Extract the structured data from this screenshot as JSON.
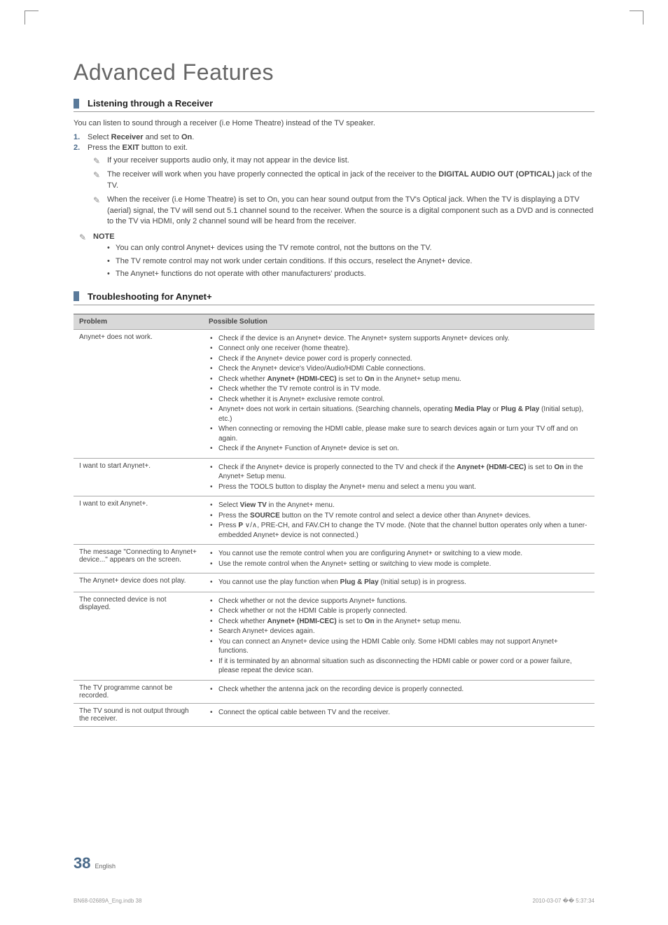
{
  "title": "Advanced Features",
  "section1": {
    "heading": "Listening through a Receiver",
    "intro": "You can listen to sound through a receiver (i.e Home Theatre) instead of the TV speaker.",
    "steps": [
      {
        "num": "1.",
        "text_pre": "Select ",
        "b1": "Receiver",
        "text_mid": " and set to ",
        "b2": "On",
        "text_post": "."
      },
      {
        "num": "2.",
        "text_pre": "Press the ",
        "b1": "EXIT",
        "text_mid": " button to exit.",
        "b2": "",
        "text_post": ""
      }
    ],
    "notes": [
      "If your receiver supports audio only, it may not appear in the device list.",
      "The receiver will work when you have properly connected the optical in jack of the receiver to the DIGITAL AUDIO OUT (OPTICAL) jack of the TV.",
      "When the receiver (i.e Home Theatre) is set to On, you can hear sound output from the TV's Optical jack. When the TV is displaying a DTV (aerial) signal, the TV will send out 5.1 channel sound to the receiver. When the source is a digital component such as a DVD and is connected to the TV via HDMI, only 2 channel sound will be heard from the receiver."
    ],
    "note_label": "NOTE",
    "note_bullets": [
      "You can only control Anynet+ devices using the TV remote control, not the buttons on the TV.",
      "The TV remote control may not work under certain conditions. If this occurs, reselect the Anynet+ device.",
      "The Anynet+ functions do not operate with other manufacturers' products."
    ]
  },
  "section2": {
    "heading": "Troubleshooting for Anynet+",
    "col1": "Problem",
    "col2": "Possible Solution",
    "rows": [
      {
        "problem": "Anynet+ does not work.",
        "solutions": [
          "Check if the device is an Anynet+ device. The Anynet+ system supports Anynet+ devices only.",
          "Connect only one receiver (home theatre).",
          "Check if the Anynet+ device power cord is properly connected.",
          "Check the Anynet+ device's Video/Audio/HDMI Cable connections.",
          "Check whether Anynet+ (HDMI-CEC) is set to On in the Anynet+ setup menu.",
          "Check whether the TV remote control is in TV mode.",
          "Check whether it is Anynet+ exclusive remote control.",
          "Anynet+ does not work in certain situations. (Searching channels, operating Media Play or Plug & Play (Initial setup), etc.)",
          "When connecting or removing the HDMI cable, please make sure to search devices again or turn your TV off and on again.",
          "Check if the Anynet+ Function of Anynet+ device is set on."
        ]
      },
      {
        "problem": "I want to start Anynet+.",
        "solutions": [
          "Check if the Anynet+ device is properly connected to the TV and check if the Anynet+ (HDMI-CEC) is set to On in the Anynet+ Setup menu.",
          "Press the TOOLS button to display the Anynet+ menu and select a menu you want."
        ]
      },
      {
        "problem": "I want to exit Anynet+.",
        "solutions": [
          "Select View TV in the Anynet+ menu.",
          "Press the SOURCE button on the TV remote control and select a device other than Anynet+ devices.",
          "Press P ∨/∧, PRE-CH, and FAV.CH to change the TV mode. (Note that the channel button operates only when a tuner-embedded Anynet+ device is not connected.)"
        ]
      },
      {
        "problem": "The message \"Connecting to Anynet+ device...\" appears on the screen.",
        "solutions": [
          "You cannot use the remote control when you are configuring Anynet+ or switching to a view mode.",
          "Use the remote control when the Anynet+ setting or switching to view mode is complete."
        ]
      },
      {
        "problem": "The Anynet+ device does not play.",
        "solutions": [
          "You cannot use the play function when Plug & Play (Initial setup) is in progress."
        ]
      },
      {
        "problem": "The connected device is not displayed.",
        "solutions": [
          "Check whether or not the device supports Anynet+ functions.",
          "Check whether or not the HDMI Cable is properly connected.",
          "Check whether Anynet+ (HDMI-CEC) is set to On in the Anynet+ setup menu.",
          "Search Anynet+ devices again.",
          "You can connect an Anynet+ device using the HDMI Cable only. Some HDMI cables may not support Anynet+ functions.",
          "If it is terminated by an abnormal situation such as disconnecting the HDMI cable or power cord or a power failure, please repeat the device scan."
        ]
      },
      {
        "problem": "The TV programme cannot be recorded.",
        "solutions": [
          "Check whether the antenna jack on the recording device is properly connected."
        ]
      },
      {
        "problem": "The TV sound is not output through the receiver.",
        "solutions": [
          "Connect the optical cable between TV and the receiver."
        ]
      }
    ]
  },
  "footer": {
    "page": "38",
    "lang": "English",
    "doc": "BN68-02689A_Eng.indb   38",
    "date": "2010-03-07   �� 5:37:34"
  }
}
